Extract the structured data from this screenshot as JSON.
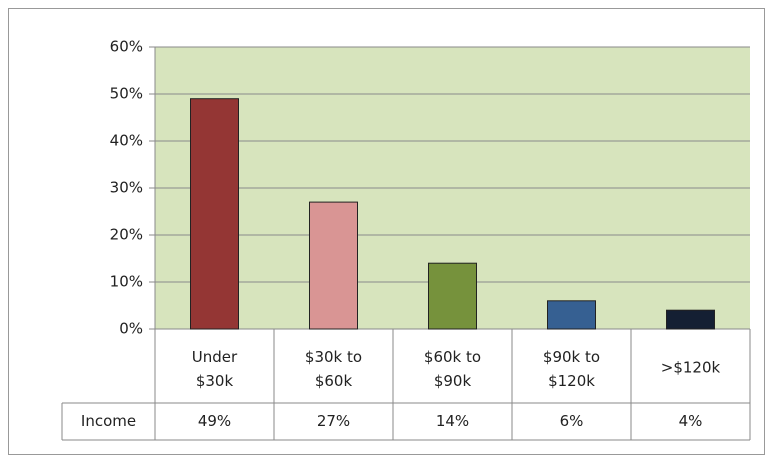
{
  "chart_data": {
    "type": "bar",
    "categories": [
      "Under $30k",
      "$30k to $60k",
      "$60k to $90k",
      "$90k to $120k",
      ">$120k"
    ],
    "series": [
      {
        "name": "Income",
        "colors": [
          "#943634",
          "#d99594",
          "#76923c",
          "#366092",
          "#141f33"
        ],
        "values": [
          49,
          27,
          14,
          6,
          4
        ],
        "value_labels": [
          "49%",
          "27%",
          "14%",
          "6%",
          "4%"
        ]
      }
    ],
    "ylim": [
      0,
      60
    ],
    "yticks": [
      {
        "value": 0,
        "label": "0%"
      },
      {
        "value": 10,
        "label": "10%"
      },
      {
        "value": 20,
        "label": "20%"
      },
      {
        "value": 30,
        "label": "30%"
      },
      {
        "value": 40,
        "label": "40%"
      },
      {
        "value": 50,
        "label": "50%"
      },
      {
        "value": 60,
        "label": "60%"
      }
    ],
    "grid": true,
    "plot_background": "#d7e4bd"
  }
}
